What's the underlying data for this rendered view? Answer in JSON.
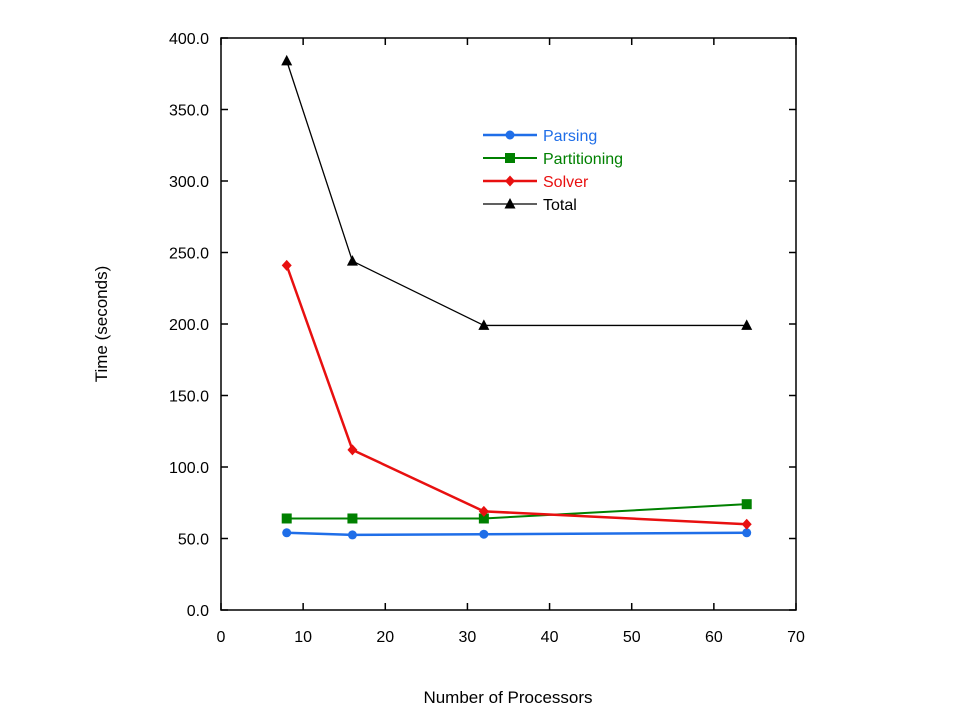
{
  "chart_data": {
    "type": "line",
    "title": "",
    "xlabel": "Number of Processors",
    "ylabel": "Time (seconds)",
    "xlim": [
      0,
      70
    ],
    "ylim": [
      0,
      400
    ],
    "xticks": [
      0,
      10,
      20,
      30,
      40,
      50,
      60,
      70
    ],
    "yticks": [
      0,
      50,
      100,
      150,
      200,
      250,
      300,
      350,
      400
    ],
    "xtick_labels": [
      "0",
      "10",
      "20",
      "30",
      "40",
      "50",
      "60",
      "70"
    ],
    "ytick_labels": [
      "0.0",
      "50.0",
      "100.0",
      "150.0",
      "200.0",
      "250.0",
      "300.0",
      "350.0",
      "400.0"
    ],
    "grid": false,
    "legend_position": "top-center",
    "x": [
      8,
      16,
      32,
      64
    ],
    "series": [
      {
        "name": "Parsing",
        "values": [
          54,
          52.5,
          53,
          54
        ],
        "color": "#1f6ee8",
        "marker": "circle"
      },
      {
        "name": "Partitioning",
        "values": [
          64,
          64,
          64,
          74
        ],
        "color": "#008000",
        "marker": "square"
      },
      {
        "name": "Solver",
        "values": [
          241,
          112,
          69,
          60
        ],
        "color": "#e81010",
        "marker": "diamond"
      },
      {
        "name": "Total",
        "values": [
          384,
          244,
          199,
          199
        ],
        "color": "#000000",
        "marker": "triangle"
      }
    ]
  }
}
